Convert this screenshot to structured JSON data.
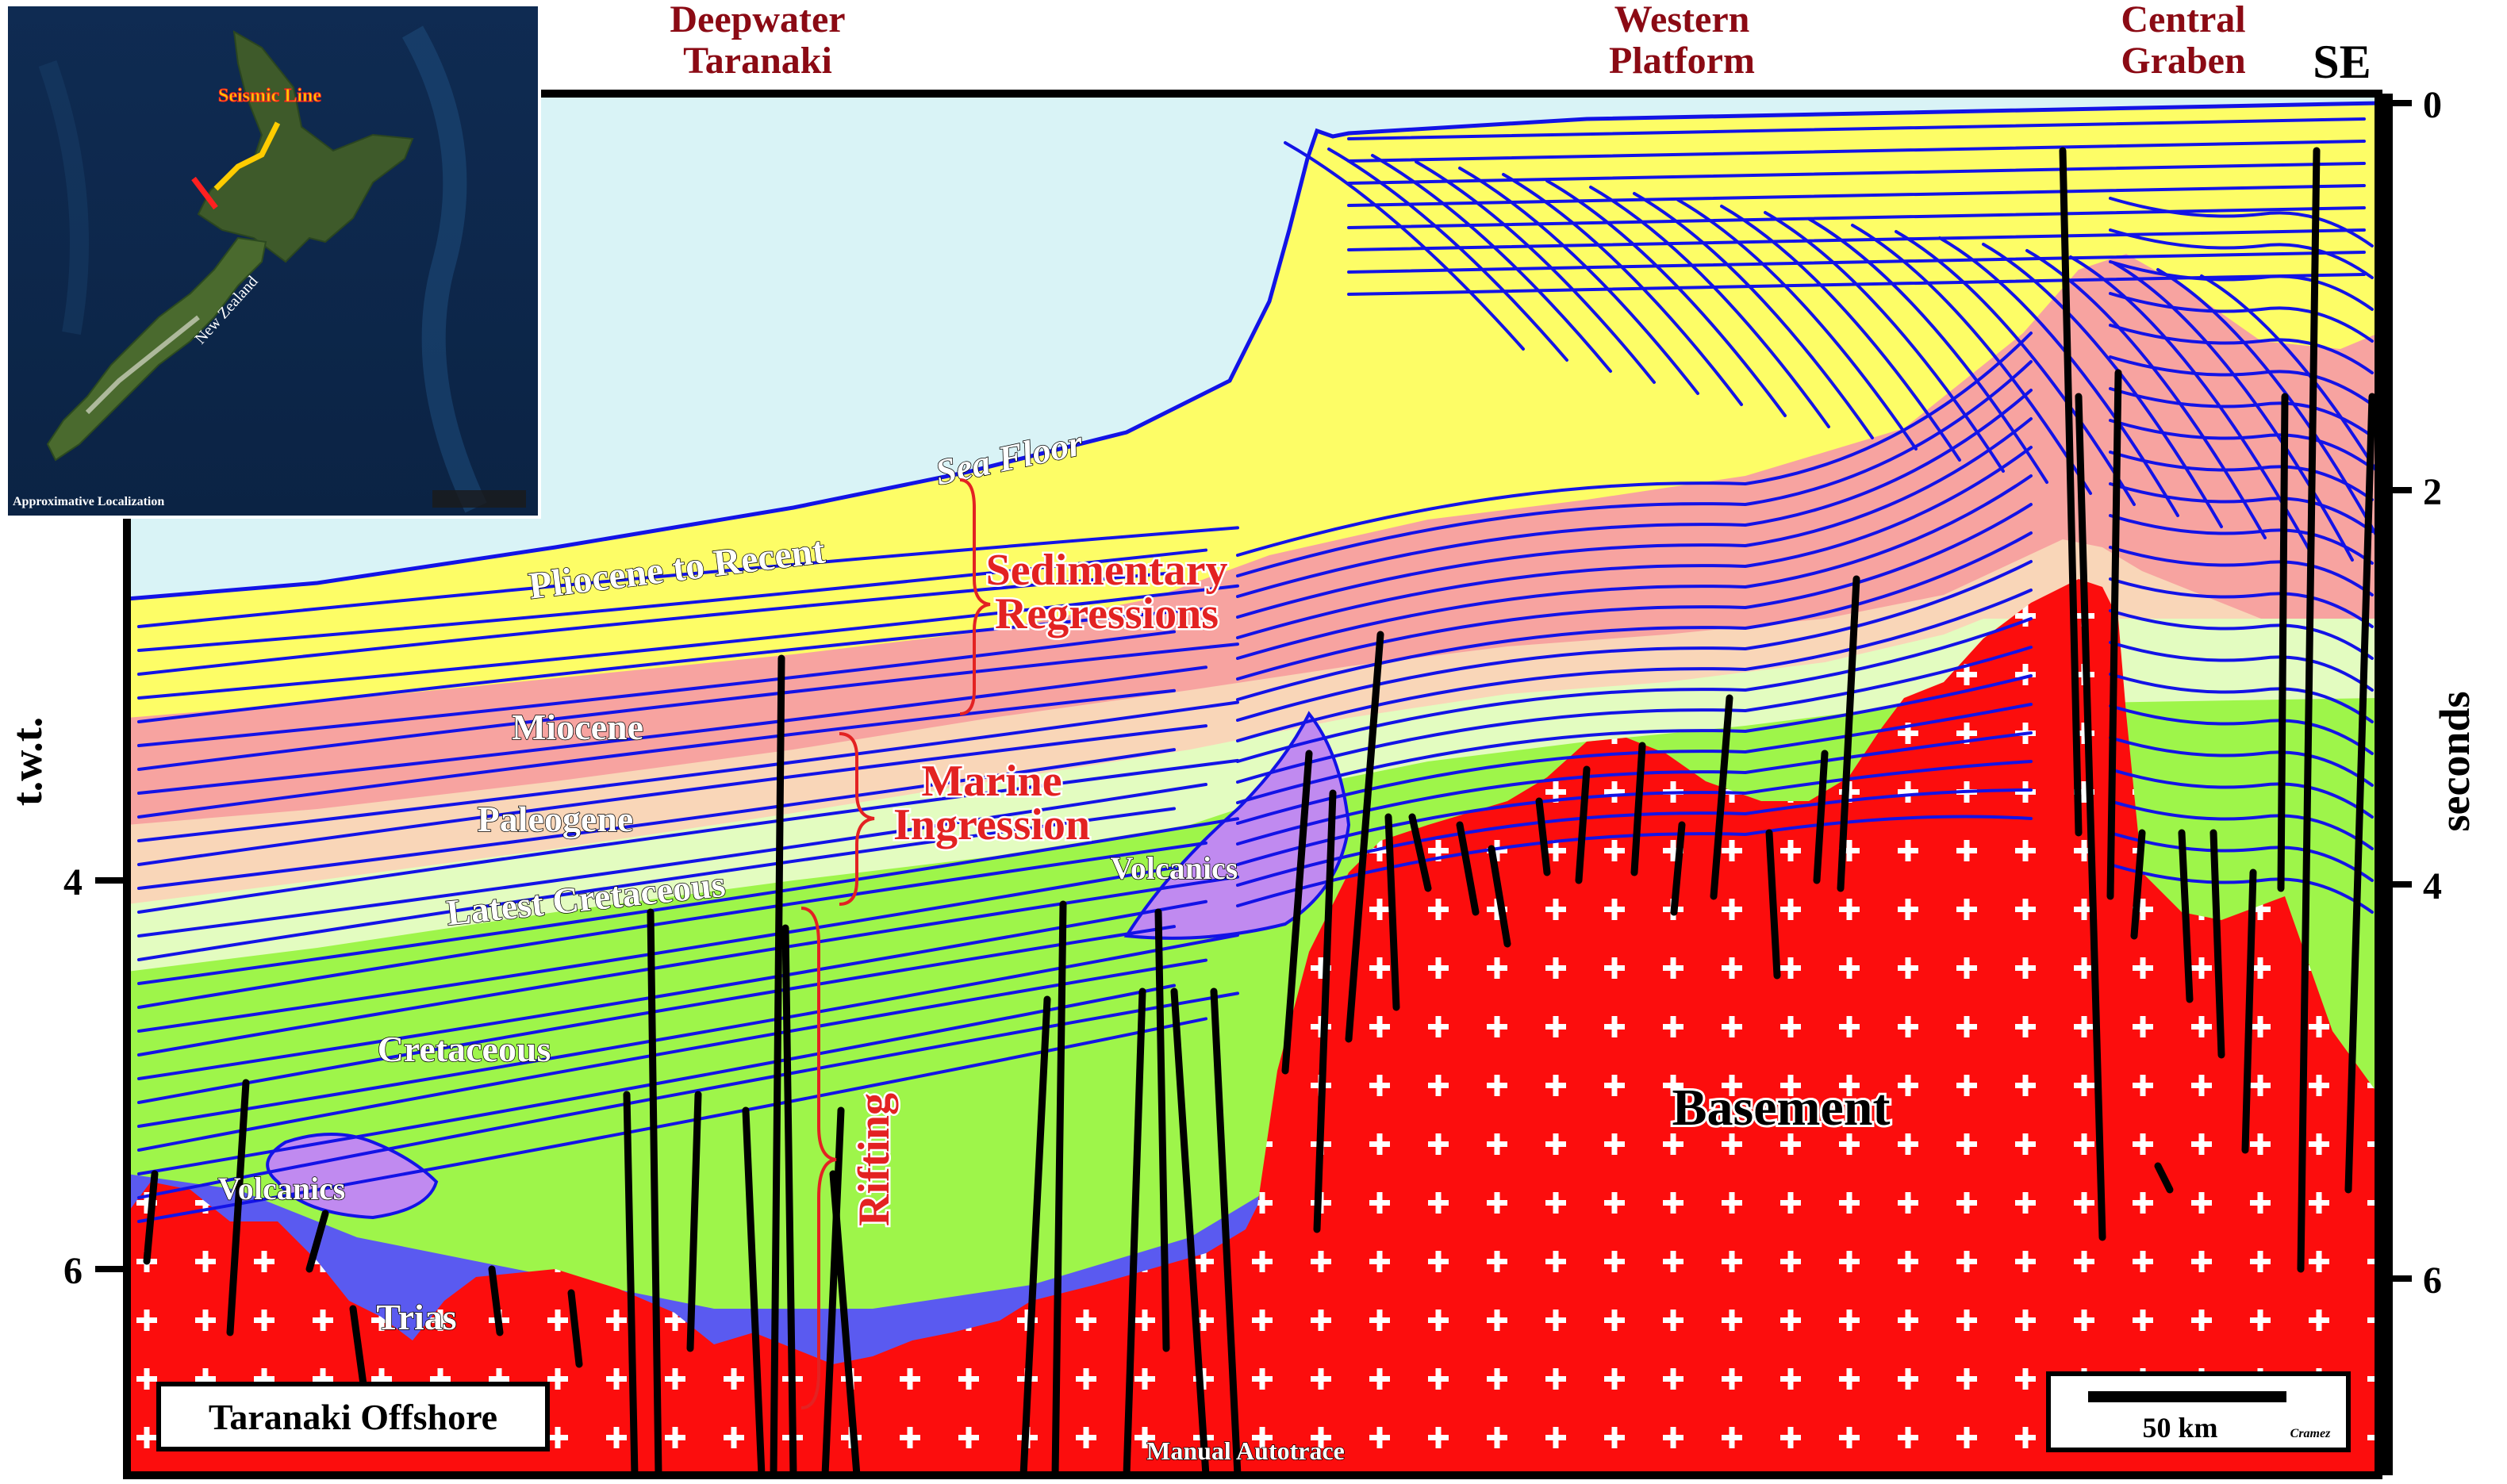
{
  "headers": [
    {
      "id": "deepwater",
      "lines": [
        "Deepwater",
        "Taranaki"
      ]
    },
    {
      "id": "western",
      "lines": [
        "Western",
        "Platform"
      ]
    },
    {
      "id": "central",
      "lines": [
        "Central",
        "Graben"
      ]
    }
  ],
  "direction": "SE",
  "axis_left": {
    "title": "t.w.t.",
    "ticks": [
      "4",
      "6"
    ]
  },
  "axis_right": {
    "title": "seconds",
    "ticks": [
      "0",
      "2",
      "4",
      "6"
    ]
  },
  "units": {
    "pliocene": "Pliocene to Recent",
    "miocene": "Miocene",
    "paleogene": "Paleogene",
    "latest_cretaceous": "Latest Cretaceous",
    "cretaceous": "Cretaceous",
    "volcanics_left": "Volcanics",
    "volcanics_center": "Volcanics",
    "trias": "Trias",
    "basement": "Basement",
    "sea_floor": "Sea Floor"
  },
  "phases": {
    "sed1": "Sedimentary",
    "sed2": "Regressions",
    "mar1": "Marine",
    "mar2": "Ingression",
    "rifting": "Rifting"
  },
  "title_box": "Taranaki Offshore",
  "scale_bar": "50 km",
  "credit": "Cramez",
  "footer_note": "Manual Autotrace",
  "inset": {
    "seismic_line": "Seismic Line",
    "country": "New Zealand",
    "caption": "Approximative Localization"
  },
  "colors": {
    "water": "#d9f3f6",
    "pliocene": "#fdfd66",
    "miocene": "#f7a3a0",
    "paleogene": "#f9d6b8",
    "latest_cret": "#e3fcc0",
    "cretaceous": "#9ef54a",
    "trias": "#5a5af0",
    "volcanics": "#c08af0",
    "basement": "#fc0d0d",
    "horizon": "#1313e6",
    "fault": "#000000",
    "header": "#8b0a14"
  }
}
